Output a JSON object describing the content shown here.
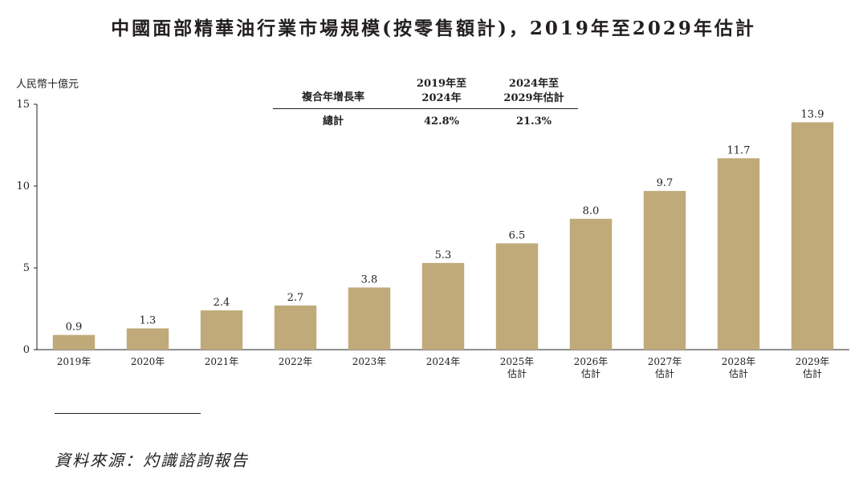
{
  "title": "中國面部精華油行業市場規模(按零售額計)，2019年至2029年估計",
  "unit_label": "人民幣十億元",
  "cagr_table": {
    "row_label": "複合年增長率",
    "col1_header": "2019年至\n2024年",
    "col2_header": "2024年至\n2029年估計",
    "total_label": "總計",
    "col1_value": "42.8%",
    "col2_value": "21.3%"
  },
  "source": "資料來源：灼識諮詢報告",
  "colors": {
    "bar": "#c0aa7a",
    "text": "#231f20"
  },
  "chart_data": {
    "type": "bar",
    "categories": [
      "2019年",
      "2020年",
      "2021年",
      "2022年",
      "2023年",
      "2024年",
      "2025年\n估計",
      "2026年\n估計",
      "2027年\n估計",
      "2028年\n估計",
      "2029年\n估計"
    ],
    "values": [
      0.9,
      1.3,
      2.4,
      2.7,
      3.8,
      5.3,
      6.5,
      8.0,
      9.7,
      11.7,
      13.9
    ],
    "value_labels": [
      "0.9",
      "1.3",
      "2.4",
      "2.7",
      "3.8",
      "5.3",
      "6.5",
      "8.0",
      "9.7",
      "11.7",
      "13.9"
    ],
    "yticks": [
      0,
      5,
      10,
      15
    ],
    "ylim": [
      0,
      15
    ],
    "grid": false
  }
}
